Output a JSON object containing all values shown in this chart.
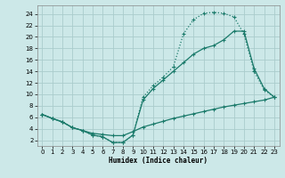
{
  "xlabel": "Humidex (Indice chaleur)",
  "bg_color": "#cce8e8",
  "grid_color": "#b0d0d0",
  "line_color": "#1a7a6a",
  "xlim": [
    -0.5,
    23.5
  ],
  "ylim": [
    1,
    25.5
  ],
  "xticks": [
    0,
    1,
    2,
    3,
    4,
    5,
    6,
    7,
    8,
    9,
    10,
    11,
    12,
    13,
    14,
    15,
    16,
    17,
    18,
    19,
    20,
    21,
    22,
    23
  ],
  "yticks": [
    2,
    4,
    6,
    8,
    10,
    12,
    14,
    16,
    18,
    20,
    22,
    24
  ],
  "curve_dot_x": [
    0,
    1,
    2,
    3,
    4,
    5,
    6,
    7,
    8,
    9,
    10,
    11,
    12,
    13,
    14,
    15,
    16,
    17,
    18,
    19,
    20,
    21,
    22,
    23
  ],
  "curve_dot_y": [
    6.5,
    5.8,
    5.2,
    4.2,
    3.7,
    2.9,
    2.6,
    1.6,
    1.6,
    2.9,
    9.5,
    11.5,
    13.0,
    14.8,
    20.5,
    23.0,
    24.1,
    24.3,
    24.1,
    23.5,
    20.5,
    14.0,
    10.8,
    9.5
  ],
  "curve_mid_x": [
    0,
    1,
    2,
    3,
    4,
    5,
    6,
    7,
    8,
    9,
    10,
    11,
    12,
    13,
    14,
    15,
    16,
    17,
    18,
    19,
    20,
    21,
    22,
    23
  ],
  "curve_mid_y": [
    6.5,
    5.8,
    5.2,
    4.2,
    3.7,
    2.9,
    2.6,
    1.6,
    1.6,
    2.9,
    9.0,
    11.0,
    12.5,
    14.0,
    15.5,
    17.0,
    18.0,
    18.5,
    19.5,
    21.0,
    21.0,
    14.5,
    11.0,
    9.5
  ],
  "curve_bot_x": [
    0,
    1,
    2,
    3,
    4,
    5,
    6,
    7,
    8,
    9,
    10,
    11,
    12,
    13,
    14,
    15,
    16,
    17,
    18,
    19,
    20,
    21,
    22,
    23
  ],
  "curve_bot_y": [
    6.5,
    5.8,
    5.2,
    4.2,
    3.7,
    3.2,
    3.0,
    2.8,
    2.8,
    3.5,
    4.3,
    4.8,
    5.3,
    5.8,
    6.2,
    6.6,
    7.0,
    7.4,
    7.8,
    8.1,
    8.4,
    8.7,
    9.0,
    9.5
  ],
  "lw": 0.9,
  "ms": 3.5
}
